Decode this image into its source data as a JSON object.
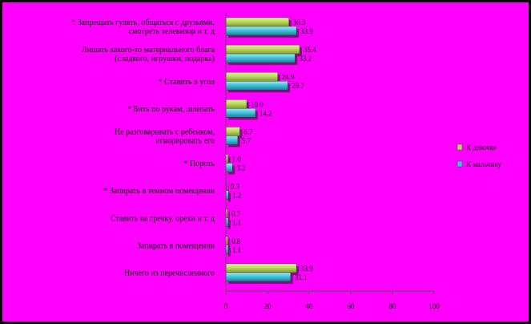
{
  "chart_data": {
    "type": "bar",
    "orientation": "horizontal",
    "categories": [
      [
        "* Запрещать гулять, общаться с друзьями,",
        "смотреть телевизор и т. д"
      ],
      [
        "Лишать какого-то материального блага",
        "(сладкого, игрушки, подарка)"
      ],
      [
        "* Ставить в угол"
      ],
      [
        "* Бить по рукам, шлепать"
      ],
      [
        "Не разговаривать с ребенком,",
        "игнорировать его"
      ],
      [
        "* Пороть"
      ],
      [
        "* Запирать в темном помещении"
      ],
      [
        "Ставить на гречку, орехи и т. д"
      ],
      [
        "Запирать в помещении"
      ],
      [
        "Ничего из перечисленного"
      ]
    ],
    "series": [
      {
        "name": "К девочке",
        "color": "#b9d65a",
        "values": [
          30.3,
          35.4,
          24.9,
          10.0,
          6.7,
          1.0,
          0.3,
          0.7,
          0.8,
          33.9
        ],
        "labels": [
          "30.3",
          "35.4",
          "24.9",
          "10.0",
          "6.7",
          "1.0",
          "0.3",
          "0.7",
          "0.8",
          "33.9"
        ]
      },
      {
        "name": "К мальчику",
        "color": "#3fbfd8",
        "values": [
          33.9,
          33.2,
          29.7,
          14.2,
          5.7,
          3.2,
          1.2,
          1.1,
          1.1,
          31.1
        ],
        "labels": [
          "33.9",
          "33.2",
          "29.7",
          "14.2",
          "5.7",
          "3.2",
          "1.2",
          "1.1",
          "1.1",
          "31.1"
        ]
      }
    ],
    "xlim": [
      0,
      100
    ],
    "xticks": [
      "0",
      "20",
      "40",
      "60",
      "80",
      "100"
    ],
    "grid": false,
    "legend_position": "right",
    "background": "#ff00ff"
  }
}
